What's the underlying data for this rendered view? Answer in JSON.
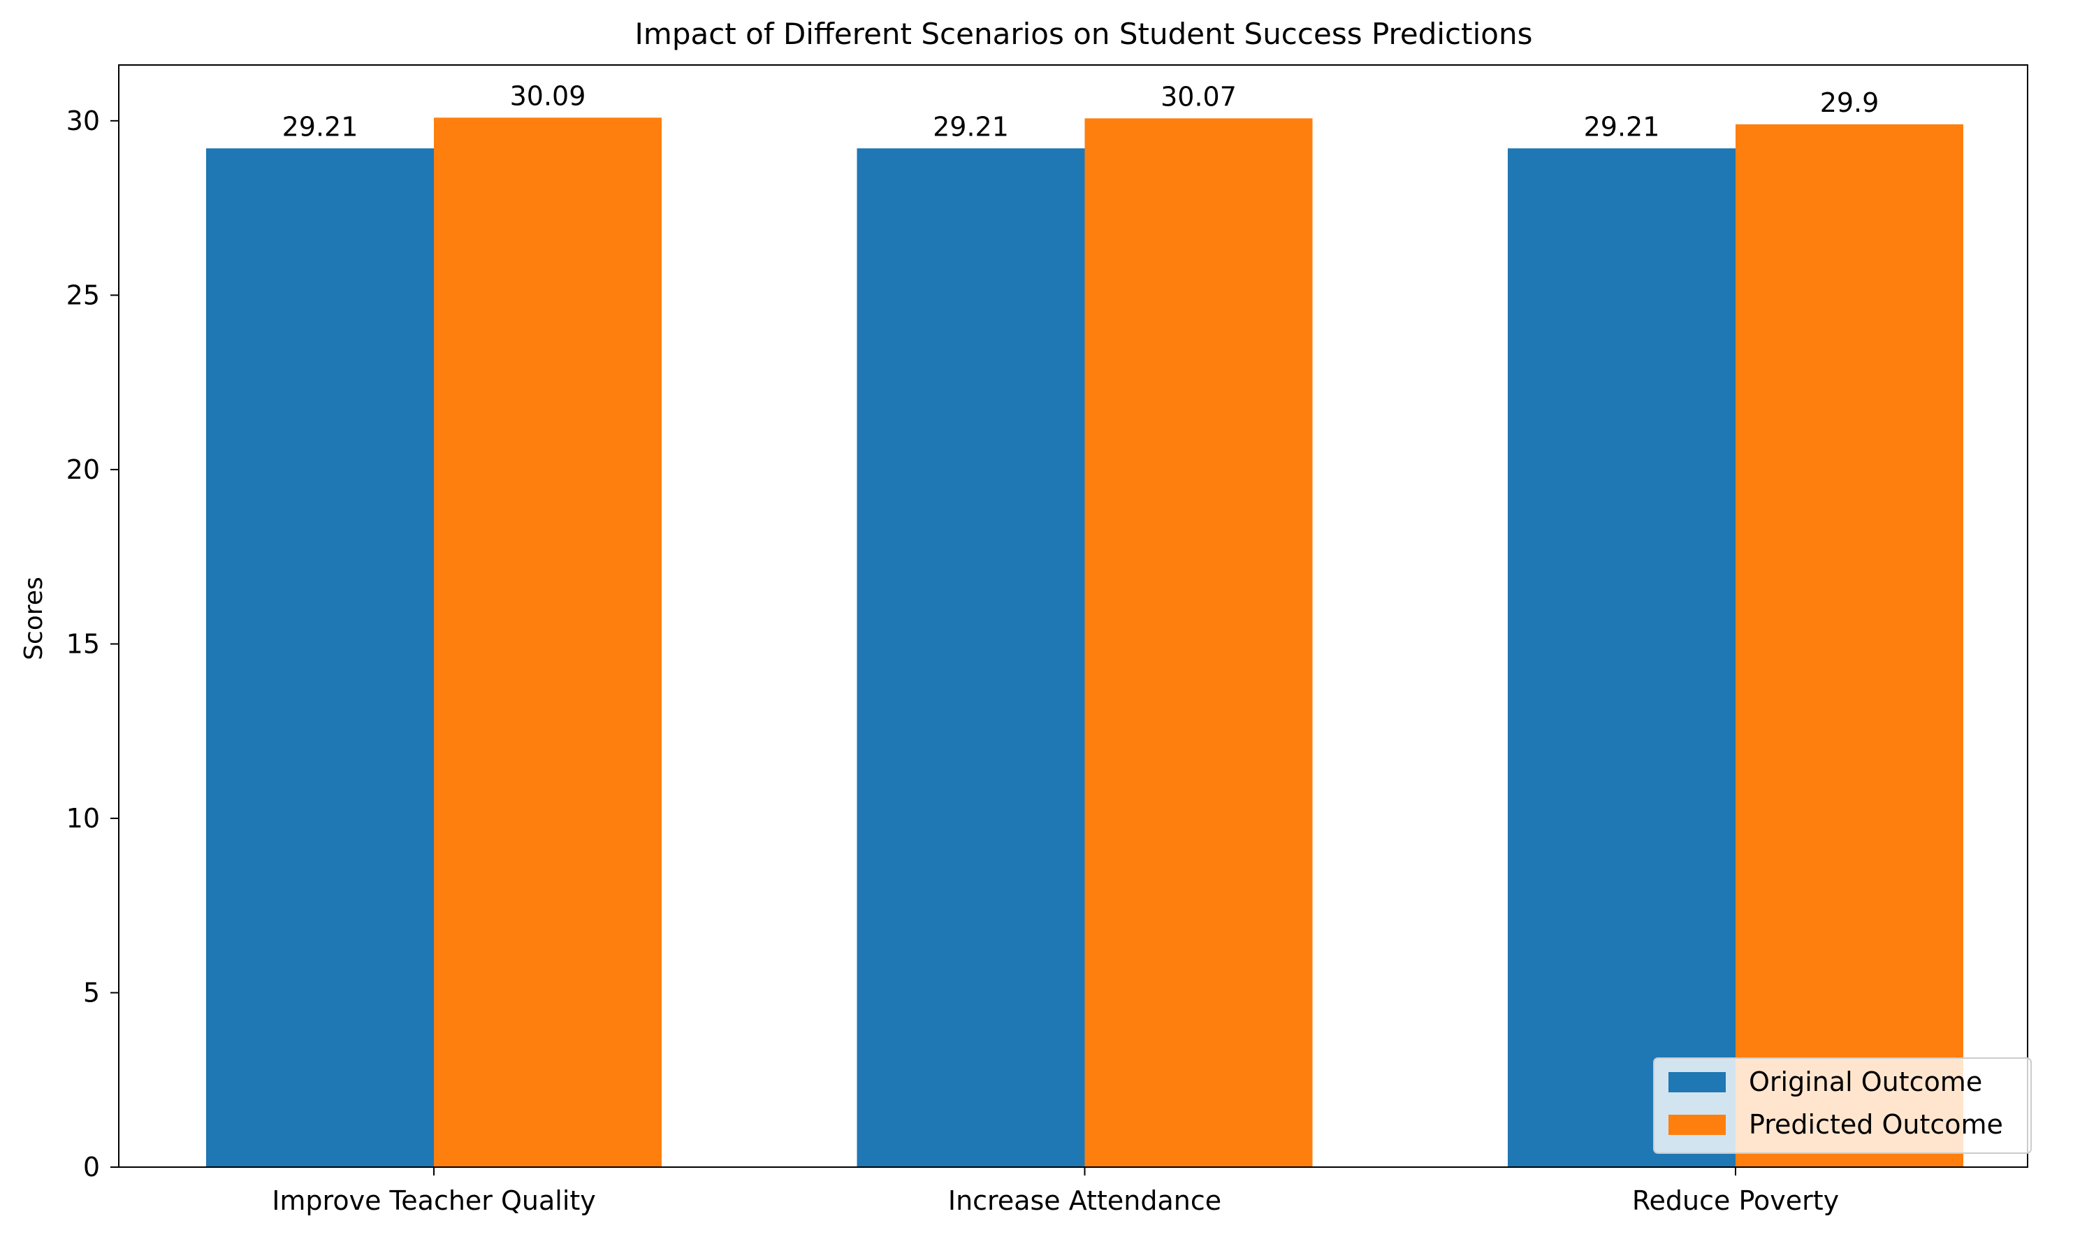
{
  "chart_data": {
    "type": "bar",
    "title": "Impact of Different Scenarios on Student Success Predictions",
    "xlabel": "",
    "ylabel": "Scores",
    "categories": [
      "Improve Teacher Quality",
      "Increase Attendance",
      "Reduce Poverty"
    ],
    "series": [
      {
        "name": "Original Outcome",
        "color": "#1f77b4",
        "values": [
          29.21,
          29.21,
          29.21
        ],
        "labels": [
          "29.21",
          "29.21",
          "29.21"
        ]
      },
      {
        "name": "Predicted Outcome",
        "color": "#ff7f0e",
        "values": [
          30.09,
          30.07,
          29.9
        ],
        "labels": [
          "30.09",
          "30.07",
          "29.9"
        ]
      }
    ],
    "ylim": [
      0,
      31.6
    ],
    "yticks": [
      0,
      5,
      10,
      15,
      20,
      25,
      30
    ],
    "grid": false,
    "legend_position": "lower-right"
  }
}
